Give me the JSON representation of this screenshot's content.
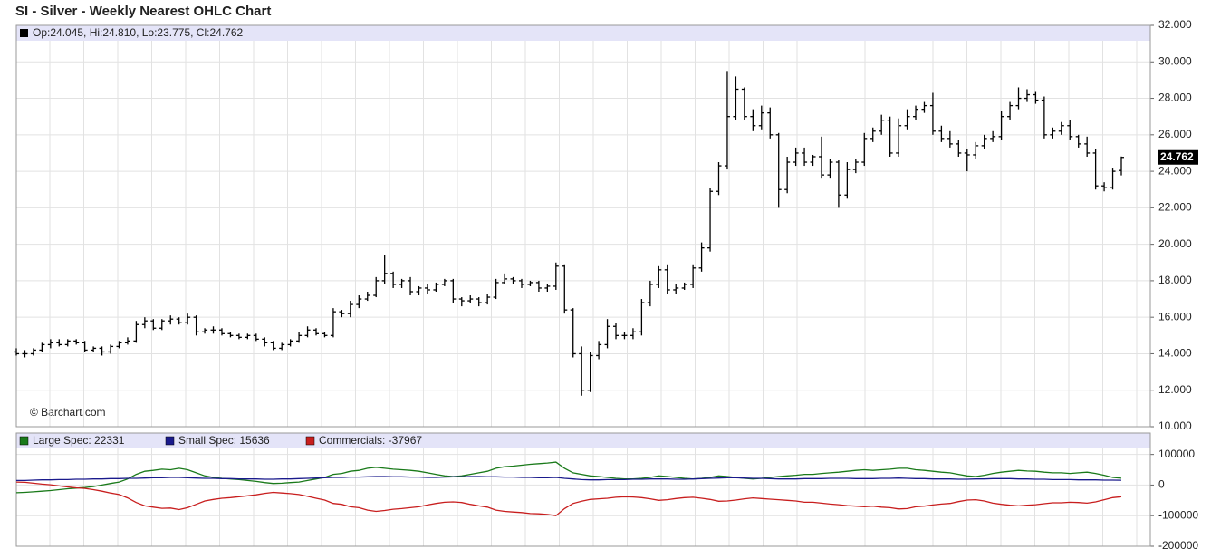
{
  "chart_data": [
    {
      "type": "ohlc",
      "title": "SI - Silver - Weekly Nearest OHLC Chart",
      "legend_text": "Op:24.045, Hi:24.810, Lo:23.775, Cl:24.762",
      "annotation": "© Barchart.com",
      "last_label": "24.762",
      "color": "#000000",
      "ylim": [
        10,
        32
      ],
      "yticks": [
        {
          "value": 10,
          "label": "10.000"
        },
        {
          "value": 12,
          "label": "12.000"
        },
        {
          "value": 14,
          "label": "14.000"
        },
        {
          "value": 16,
          "label": "16.000"
        },
        {
          "value": 18,
          "label": "18.000"
        },
        {
          "value": 20,
          "label": "20.000"
        },
        {
          "value": 22,
          "label": "22.000"
        },
        {
          "value": 24,
          "label": "24.000"
        },
        {
          "value": 26,
          "label": "26.000"
        },
        {
          "value": 28,
          "label": "28.000"
        },
        {
          "value": 30,
          "label": "30.000"
        },
        {
          "value": 32,
          "label": "32.000"
        }
      ],
      "grid": true,
      "open": [
        14.1,
        14.0,
        14.0,
        14.2,
        14.5,
        14.6,
        14.5,
        14.7,
        14.6,
        14.2,
        14.3,
        14.1,
        14.4,
        14.6,
        14.7,
        15.6,
        15.8,
        15.4,
        15.8,
        15.9,
        15.7,
        16.0,
        15.2,
        15.3,
        15.3,
        15.1,
        15.0,
        14.9,
        15.0,
        14.8,
        14.6,
        14.3,
        14.5,
        14.7,
        15.0,
        15.3,
        15.1,
        15.0,
        16.3,
        16.2,
        16.7,
        17.0,
        17.2,
        18.0,
        18.4,
        17.8,
        18.0,
        17.4,
        17.6,
        17.5,
        17.8,
        18.0,
        17.0,
        16.9,
        17.0,
        16.8,
        17.1,
        17.9,
        18.1,
        18.0,
        17.8,
        17.9,
        17.6,
        17.7,
        18.8,
        16.4,
        14.0,
        12.0,
        13.9,
        14.5,
        15.5,
        15.0,
        15.0,
        15.2,
        16.8,
        17.8,
        18.6,
        17.5,
        17.6,
        17.8,
        18.7,
        19.8,
        22.9,
        24.3,
        27.0,
        28.5,
        27.0,
        26.5,
        27.2,
        26.0,
        23.0,
        24.5,
        25.0,
        24.5,
        24.8,
        23.8,
        24.5,
        22.7,
        24.1,
        24.5,
        25.8,
        26.2,
        26.8,
        25.0,
        26.5,
        27.0,
        27.4,
        27.6,
        26.2,
        25.8,
        25.5,
        25.0,
        24.9,
        25.4,
        25.8,
        25.9,
        27.0,
        27.6,
        28.0,
        28.2,
        27.9,
        26.0,
        26.2,
        26.5,
        25.9,
        25.5,
        25.0,
        23.2,
        23.1,
        24.045
      ],
      "high": [
        14.3,
        14.2,
        14.3,
        14.6,
        14.8,
        14.8,
        14.8,
        14.8,
        14.7,
        14.4,
        14.4,
        14.5,
        14.7,
        14.9,
        15.8,
        16.0,
        15.9,
        15.9,
        16.1,
        16.0,
        16.2,
        16.1,
        15.4,
        15.5,
        15.4,
        15.2,
        15.1,
        15.1,
        15.1,
        14.9,
        14.7,
        14.6,
        14.8,
        15.2,
        15.5,
        15.4,
        15.2,
        16.5,
        16.4,
        16.9,
        17.2,
        17.4,
        18.2,
        19.4,
        18.5,
        18.1,
        18.2,
        17.7,
        17.8,
        17.9,
        18.1,
        18.1,
        17.1,
        17.2,
        17.1,
        17.3,
        18.1,
        18.4,
        18.2,
        18.1,
        18.0,
        18.0,
        17.8,
        19.0,
        18.9,
        16.5,
        14.4,
        14.1,
        14.7,
        15.9,
        15.7,
        15.2,
        15.4,
        17.0,
        18.0,
        18.8,
        18.9,
        17.8,
        17.9,
        18.9,
        20.1,
        23.1,
        24.5,
        29.5,
        29.2,
        28.6,
        27.4,
        27.6,
        27.5,
        26.1,
        24.8,
        25.3,
        25.3,
        24.9,
        25.9,
        24.7,
        24.6,
        24.5,
        24.7,
        26.1,
        26.4,
        27.1,
        27.0,
        26.9,
        27.4,
        27.6,
        27.8,
        28.3,
        26.5,
        26.2,
        25.7,
        25.2,
        25.6,
        26.0,
        26.2,
        27.3,
        27.8,
        28.6,
        28.5,
        28.4,
        28.1,
        26.4,
        26.7,
        26.8,
        26.0,
        25.9,
        25.2,
        23.4,
        24.2,
        24.81
      ],
      "low": [
        13.9,
        13.8,
        13.9,
        14.1,
        14.3,
        14.4,
        14.4,
        14.5,
        14.1,
        14.1,
        13.9,
        14.0,
        14.3,
        14.5,
        14.6,
        15.4,
        15.3,
        15.3,
        15.6,
        15.6,
        15.6,
        15.0,
        15.1,
        15.1,
        15.0,
        14.9,
        14.8,
        14.8,
        14.7,
        14.4,
        14.2,
        14.2,
        14.4,
        14.6,
        14.9,
        15.0,
        14.9,
        14.9,
        16.0,
        16.0,
        16.5,
        16.9,
        17.1,
        17.8,
        17.6,
        17.6,
        17.2,
        17.2,
        17.3,
        17.4,
        17.7,
        16.8,
        16.6,
        16.8,
        16.6,
        16.7,
        17.0,
        17.8,
        17.8,
        17.6,
        17.7,
        17.4,
        17.4,
        17.5,
        16.2,
        13.8,
        11.7,
        11.9,
        13.7,
        14.3,
        14.8,
        14.8,
        14.8,
        15.0,
        16.6,
        17.6,
        17.3,
        17.3,
        17.5,
        17.6,
        18.5,
        19.6,
        22.7,
        24.1,
        26.8,
        26.8,
        26.2,
        26.3,
        25.8,
        22.0,
        22.8,
        24.3,
        24.3,
        24.3,
        23.6,
        23.6,
        22.0,
        22.5,
        23.9,
        24.3,
        25.6,
        26.0,
        24.8,
        24.8,
        26.3,
        26.8,
        27.2,
        26.0,
        25.6,
        25.3,
        24.8,
        24.0,
        24.7,
        25.2,
        25.6,
        25.7,
        26.8,
        27.4,
        27.8,
        27.7,
        25.8,
        25.8,
        26.0,
        25.7,
        25.3,
        24.8,
        23.0,
        22.9,
        23.0,
        23.775
      ],
      "close": [
        14.0,
        14.0,
        14.2,
        14.5,
        14.6,
        14.5,
        14.7,
        14.6,
        14.2,
        14.3,
        14.1,
        14.4,
        14.6,
        14.7,
        15.6,
        15.8,
        15.4,
        15.8,
        15.9,
        15.7,
        16.0,
        15.2,
        15.3,
        15.3,
        15.1,
        15.0,
        14.9,
        15.0,
        14.8,
        14.6,
        14.3,
        14.5,
        14.7,
        15.0,
        15.3,
        15.1,
        15.0,
        16.3,
        16.2,
        16.7,
        17.0,
        17.2,
        18.0,
        18.4,
        17.8,
        18.0,
        17.4,
        17.6,
        17.5,
        17.8,
        18.0,
        17.0,
        16.9,
        17.0,
        16.8,
        17.1,
        17.9,
        18.1,
        18.0,
        17.8,
        17.9,
        17.6,
        17.7,
        18.8,
        16.4,
        14.0,
        12.0,
        13.9,
        14.5,
        15.5,
        15.0,
        15.0,
        15.2,
        16.8,
        17.8,
        18.6,
        17.5,
        17.6,
        17.8,
        18.7,
        19.8,
        22.9,
        24.3,
        27.0,
        28.5,
        27.0,
        26.5,
        27.2,
        26.0,
        23.0,
        24.5,
        25.0,
        24.5,
        24.8,
        23.8,
        24.5,
        22.7,
        24.1,
        24.5,
        25.8,
        26.2,
        26.8,
        25.0,
        26.5,
        27.0,
        27.4,
        27.6,
        26.2,
        25.8,
        25.5,
        25.0,
        24.9,
        25.4,
        25.8,
        25.9,
        27.0,
        27.6,
        28.0,
        28.2,
        27.9,
        26.0,
        26.2,
        26.5,
        25.9,
        25.5,
        25.0,
        23.2,
        23.1,
        24.0,
        24.762
      ]
    },
    {
      "type": "line",
      "ylim": [
        -200000,
        170000
      ],
      "yticks": [
        100000,
        0,
        -100000,
        -200000
      ],
      "grid": true,
      "series": [
        {
          "name": "Large Spec: 22331",
          "color": "#1a7a1a",
          "values": [
            -25000,
            -24000,
            -22000,
            -20000,
            -18000,
            -15000,
            -12000,
            -10000,
            -8000,
            -5000,
            0,
            5000,
            10000,
            20000,
            35000,
            45000,
            48000,
            52000,
            50000,
            55000,
            50000,
            40000,
            30000,
            25000,
            22000,
            20000,
            18000,
            15000,
            12000,
            8000,
            5000,
            6000,
            8000,
            10000,
            15000,
            20000,
            25000,
            35000,
            38000,
            45000,
            48000,
            55000,
            58000,
            55000,
            52000,
            50000,
            48000,
            45000,
            40000,
            35000,
            30000,
            28000,
            30000,
            35000,
            40000,
            45000,
            55000,
            60000,
            62000,
            65000,
            68000,
            70000,
            72000,
            75000,
            55000,
            40000,
            35000,
            30000,
            28000,
            25000,
            22000,
            20000,
            20000,
            22000,
            25000,
            30000,
            28000,
            25000,
            22000,
            20000,
            22000,
            25000,
            30000,
            28000,
            25000,
            22000,
            20000,
            22000,
            25000,
            28000,
            30000,
            32000,
            35000,
            35000,
            38000,
            40000,
            42000,
            45000,
            48000,
            50000,
            48000,
            50000,
            52000,
            55000,
            55000,
            50000,
            48000,
            45000,
            42000,
            40000,
            35000,
            30000,
            28000,
            32000,
            38000,
            42000,
            45000,
            48000,
            46000,
            45000,
            42000,
            40000,
            40000,
            38000,
            40000,
            42000,
            38000,
            32000,
            25000,
            22331
          ]
        },
        {
          "name": "Small Spec: 15636",
          "color": "#1a1a8c",
          "values": [
            15000,
            15000,
            16000,
            17000,
            17000,
            18000,
            18000,
            19000,
            19000,
            20000,
            20000,
            21000,
            21000,
            22000,
            22000,
            23000,
            24000,
            24000,
            25000,
            25000,
            24000,
            23000,
            22000,
            22000,
            21000,
            21000,
            20000,
            20000,
            20000,
            19000,
            19000,
            20000,
            20000,
            21000,
            22000,
            23000,
            24000,
            25000,
            25000,
            26000,
            26000,
            27000,
            28000,
            28000,
            27000,
            27000,
            26000,
            26000,
            25000,
            25000,
            26000,
            27000,
            27000,
            28000,
            28000,
            27000,
            27000,
            26000,
            26000,
            25000,
            25000,
            24000,
            24000,
            25000,
            22000,
            20000,
            18000,
            17000,
            17000,
            18000,
            18000,
            18000,
            19000,
            19000,
            20000,
            20000,
            20000,
            19000,
            19000,
            20000,
            21000,
            22000,
            23000,
            24000,
            24000,
            23000,
            22000,
            22000,
            21000,
            20000,
            20000,
            20000,
            21000,
            21000,
            21000,
            22000,
            22000,
            22000,
            21000,
            21000,
            21000,
            22000,
            22000,
            23000,
            22000,
            21000,
            21000,
            20000,
            20000,
            20000,
            19000,
            19000,
            20000,
            20000,
            21000,
            21000,
            21000,
            20000,
            20000,
            19000,
            19000,
            18000,
            18000,
            18000,
            17000,
            17000,
            17000,
            16000,
            16000,
            15636
          ]
        },
        {
          "name": "Commercials: -37967",
          "color": "#c81e1e",
          "values": [
            10000,
            9000,
            6000,
            3000,
            1000,
            -3000,
            -6000,
            -9000,
            -11000,
            -15000,
            -20000,
            -26000,
            -31000,
            -42000,
            -57000,
            -68000,
            -72000,
            -76000,
            -75000,
            -80000,
            -74000,
            -63000,
            -52000,
            -47000,
            -43000,
            -41000,
            -38000,
            -35000,
            -32000,
            -27000,
            -24000,
            -26000,
            -28000,
            -31000,
            -37000,
            -43000,
            -49000,
            -60000,
            -63000,
            -71000,
            -74000,
            -82000,
            -86000,
            -83000,
            -79000,
            -77000,
            -74000,
            -71000,
            -65000,
            -60000,
            -56000,
            -55000,
            -57000,
            -63000,
            -68000,
            -72000,
            -82000,
            -86000,
            -88000,
            -90000,
            -93000,
            -94000,
            -96000,
            -100000,
            -77000,
            -60000,
            -53000,
            -47000,
            -45000,
            -43000,
            -40000,
            -38000,
            -39000,
            -41000,
            -45000,
            -50000,
            -48000,
            -44000,
            -41000,
            -40000,
            -43000,
            -47000,
            -53000,
            -52000,
            -49000,
            -45000,
            -42000,
            -44000,
            -46000,
            -48000,
            -50000,
            -52000,
            -56000,
            -56000,
            -59000,
            -62000,
            -64000,
            -67000,
            -69000,
            -71000,
            -69000,
            -72000,
            -74000,
            -78000,
            -77000,
            -71000,
            -69000,
            -65000,
            -62000,
            -60000,
            -54000,
            -49000,
            -48000,
            -52000,
            -59000,
            -63000,
            -66000,
            -68000,
            -66000,
            -64000,
            -61000,
            -58000,
            -58000,
            -56000,
            -57000,
            -59000,
            -55000,
            -48000,
            -41000,
            -37967
          ]
        }
      ]
    }
  ]
}
